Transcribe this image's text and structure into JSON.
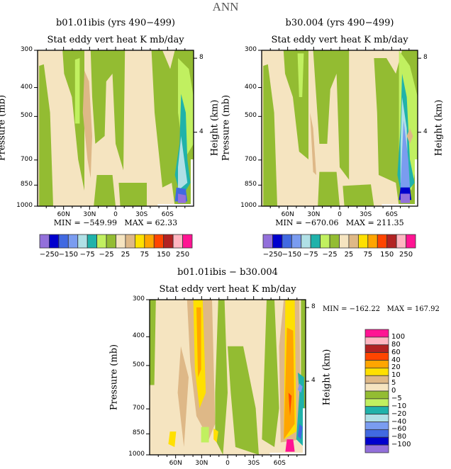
{
  "main_title": "ANN",
  "chart_data": [
    {
      "type": "heatmap",
      "id": "panel-1",
      "title": "b01.01ibis (yrs 490−499)",
      "subtitle": "Stat eddy vert heat   K mb/day",
      "xlabel": "",
      "ylabel": "Pressure (mb)",
      "ylabel_right": "Height (km)",
      "x_ticks": [
        "60N",
        "30N",
        "0",
        "30S",
        "60S"
      ],
      "x_tick_values": [
        60,
        30,
        0,
        -30,
        -60
      ],
      "xlim": [
        90,
        -90
      ],
      "y_ticks": [
        "300",
        "400",
        "500",
        "700",
        "850",
        "1000"
      ],
      "y_tick_values": [
        300,
        400,
        500,
        700,
        850,
        1000
      ],
      "ylim": [
        1000,
        300
      ],
      "y_right_ticks": [
        "8",
        "4"
      ],
      "y_right_values_km": [
        8,
        4
      ],
      "min_label": "MIN =",
      "min_value": "−549.99",
      "max_label": "MAX =",
      "max_value": "62.33",
      "colorbar": {
        "orientation": "horizontal",
        "labels": [
          "−250",
          "−150",
          "−75",
          "−25",
          "25",
          "75",
          "150",
          "250"
        ],
        "colors": [
          "#9370DB",
          "#0000CD",
          "#4169E1",
          "#7A9CF0",
          "#B0E0E6",
          "#20B2AA",
          "#C1F060",
          "#93BC32",
          "#F5E4C0",
          "#DEB887",
          "#FFE000",
          "#FFA500",
          "#FF4500",
          "#B22222",
          "#FFB6C1",
          "#FF1493"
        ]
      }
    },
    {
      "type": "heatmap",
      "id": "panel-2",
      "title": "b30.004 (yrs 490−499)",
      "subtitle": "Stat eddy vert heat   K mb/day",
      "xlabel": "",
      "ylabel": "Pressure (mb)",
      "ylabel_right": "Height (km)",
      "x_ticks": [
        "60N",
        "30N",
        "0",
        "30S",
        "60S"
      ],
      "x_tick_values": [
        60,
        30,
        0,
        -30,
        -60
      ],
      "xlim": [
        90,
        -90
      ],
      "y_ticks": [
        "300",
        "400",
        "500",
        "700",
        "850",
        "1000"
      ],
      "y_tick_values": [
        300,
        400,
        500,
        700,
        850,
        1000
      ],
      "ylim": [
        1000,
        300
      ],
      "y_right_ticks": [
        "8",
        "4"
      ],
      "y_right_values_km": [
        8,
        4
      ],
      "min_label": "MIN =",
      "min_value": "−670.06",
      "max_label": "MAX =",
      "max_value": "211.35",
      "colorbar": {
        "orientation": "horizontal",
        "labels": [
          "−250",
          "−150",
          "−75",
          "−25",
          "25",
          "75",
          "150",
          "250"
        ],
        "colors": [
          "#9370DB",
          "#0000CD",
          "#4169E1",
          "#7A9CF0",
          "#B0E0E6",
          "#20B2AA",
          "#C1F060",
          "#93BC32",
          "#F5E4C0",
          "#DEB887",
          "#FFE000",
          "#FFA500",
          "#FF4500",
          "#B22222",
          "#FFB6C1",
          "#FF1493"
        ]
      }
    },
    {
      "type": "heatmap",
      "id": "panel-diff",
      "title": "b01.01ibis − b30.004",
      "subtitle": "Stat eddy vert heat   K mb/day",
      "xlabel": "",
      "ylabel": "Pressure (mb)",
      "ylabel_right": "Height (km)",
      "x_ticks": [
        "60N",
        "30N",
        "0",
        "30S",
        "60S"
      ],
      "x_tick_values": [
        60,
        30,
        0,
        -30,
        -60
      ],
      "xlim": [
        90,
        -90
      ],
      "y_ticks": [
        "300",
        "400",
        "500",
        "700",
        "850",
        "1000"
      ],
      "y_tick_values": [
        300,
        400,
        500,
        700,
        850,
        1000
      ],
      "ylim": [
        1000,
        300
      ],
      "y_right_ticks": [
        "8",
        "4"
      ],
      "y_right_values_km": [
        8,
        4
      ],
      "min_label": "MIN =",
      "min_value": "−162.22",
      "max_label": "MAX =",
      "max_value": "167.92",
      "colorbar": {
        "orientation": "vertical",
        "labels": [
          "100",
          "80",
          "60",
          "40",
          "20",
          "10",
          "5",
          "0",
          "−5",
          "−10",
          "−20",
          "−40",
          "−60",
          "−80",
          "−100"
        ],
        "colors": [
          "#FF1493",
          "#FFB6C1",
          "#B22222",
          "#FF4500",
          "#FFA500",
          "#FFE000",
          "#DEB887",
          "#F5E4C0",
          "#93BC32",
          "#C1F060",
          "#20B2AA",
          "#B0E0E6",
          "#7A9CF0",
          "#4169E1",
          "#0000CD",
          "#9370DB"
        ]
      }
    }
  ]
}
